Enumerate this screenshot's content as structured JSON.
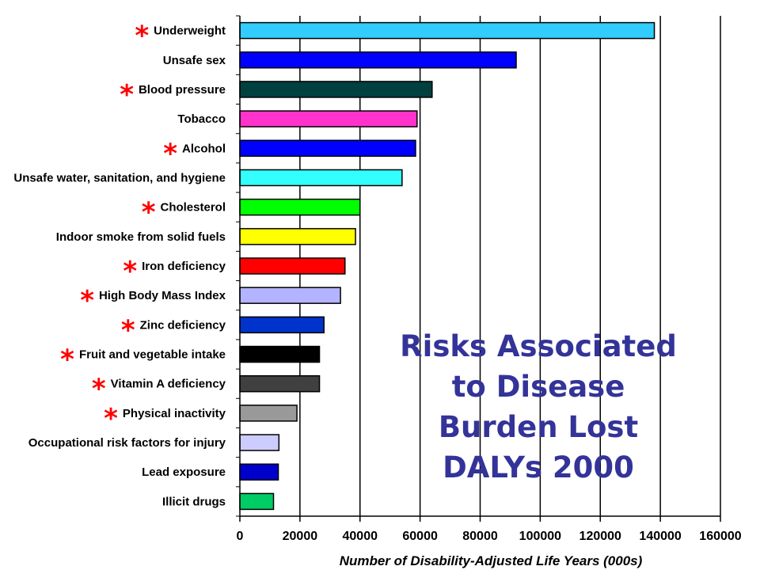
{
  "chart_data": {
    "type": "bar",
    "orientation": "horizontal",
    "title_lines": [
      "Risks Associated",
      "to Disease",
      "Burden Lost",
      "DALYs 2000"
    ],
    "xlabel": "Number of Disability-Adjusted Life Years (000s)",
    "ylabel": "",
    "xlim": [
      0,
      160000
    ],
    "xticks": [
      0,
      20000,
      40000,
      60000,
      80000,
      100000,
      120000,
      140000,
      160000
    ],
    "grid": "vertical",
    "legend": "none",
    "categories": [
      "Underweight",
      "Unsafe sex",
      "Blood pressure",
      "Tobacco",
      "Alcohol",
      "Unsafe water, sanitation, and hygiene",
      "Cholesterol",
      "Indoor smoke from solid fuels",
      "Iron deficiency",
      "High Body Mass Index",
      "Zinc deficiency",
      "Fruit and vegetable intake",
      "Vitamin A deficiency",
      "Physical inactivity",
      "Occupational risk factors for injury",
      "Lead exposure",
      "Illicit drugs"
    ],
    "values": [
      138000,
      92000,
      64000,
      59000,
      58500,
      54000,
      40000,
      38500,
      35000,
      33500,
      28000,
      26500,
      26500,
      19000,
      13000,
      12800,
      11200
    ],
    "colors": [
      "#33ccff",
      "#0000ff",
      "#004040",
      "#ff33cc",
      "#0000ff",
      "#33ffff",
      "#00ff00",
      "#ffff00",
      "#ff0000",
      "#b3b3ff",
      "#0033cc",
      "#000000",
      "#404040",
      "#999999",
      "#ccccff",
      "#0000cc",
      "#00cc66"
    ],
    "starred": [
      true,
      false,
      true,
      false,
      true,
      false,
      true,
      false,
      true,
      true,
      true,
      true,
      true,
      true,
      false,
      false,
      false
    ],
    "star_color": "#ff0000",
    "star_symbol": "*",
    "title_color": "#333399"
  }
}
